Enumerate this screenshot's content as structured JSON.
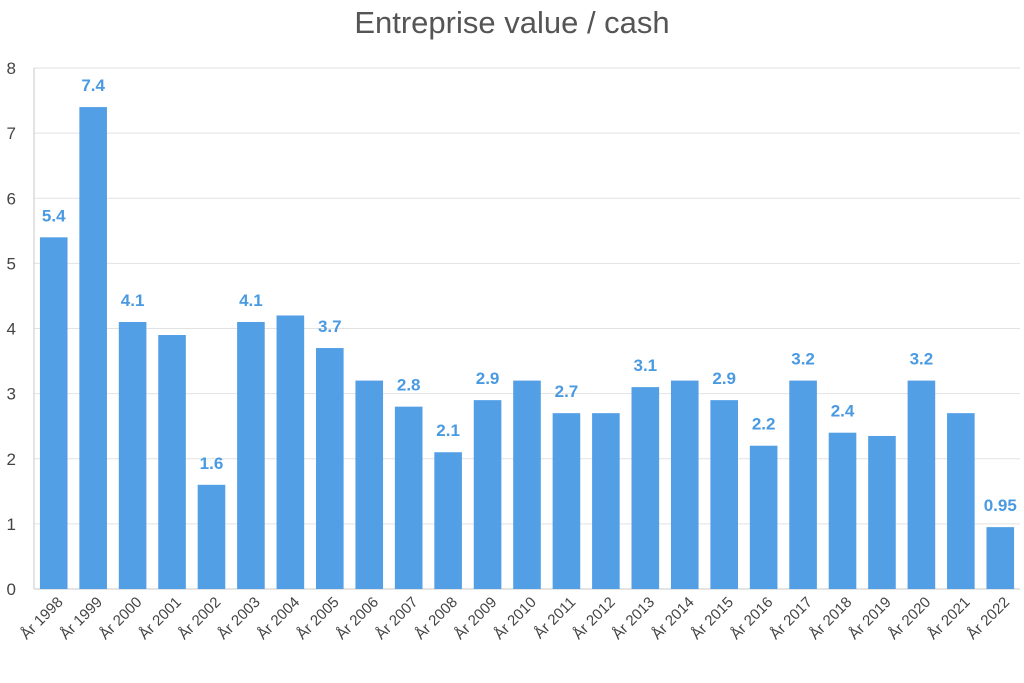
{
  "chart_data": {
    "type": "bar",
    "title": "Entreprise value / cash",
    "xlabel": "",
    "ylabel": "",
    "ylim": [
      0,
      8
    ],
    "yticks": [
      0,
      1,
      2,
      3,
      4,
      5,
      6,
      7,
      8
    ],
    "grid": true,
    "bar_color": "#539fe6",
    "label_color": "#4a9ae2",
    "categories": [
      "År 1998",
      "År 1999",
      "År 2000",
      "År 2001",
      "År 2002",
      "År 2003",
      "År 2004",
      "År 2005",
      "År 2006",
      "År 2007",
      "År 2008",
      "År 2009",
      "År 2010",
      "År 2011",
      "År 2012",
      "År 2013",
      "År 2014",
      "År 2015",
      "År 2016",
      "År 2017",
      "År 2018",
      "År 2019",
      "År 2020",
      "År 2021",
      "År 2022"
    ],
    "values": [
      5.4,
      7.4,
      4.1,
      3.9,
      1.6,
      4.1,
      4.2,
      3.7,
      3.2,
      2.8,
      2.1,
      2.9,
      3.2,
      2.7,
      2.7,
      3.1,
      3.2,
      2.9,
      2.2,
      3.2,
      2.4,
      2.35,
      3.2,
      2.7,
      0.95
    ],
    "data_labels": [
      "5.4",
      "7.4",
      "4.1",
      "",
      "1.6",
      "4.1",
      "",
      "3.7",
      "",
      "2.8",
      "2.1",
      "2.9",
      "",
      "2.7",
      "",
      "3.1",
      "",
      "2.9",
      "2.2",
      "3.2",
      "2.4",
      "",
      "3.2",
      "",
      "0.95"
    ]
  }
}
